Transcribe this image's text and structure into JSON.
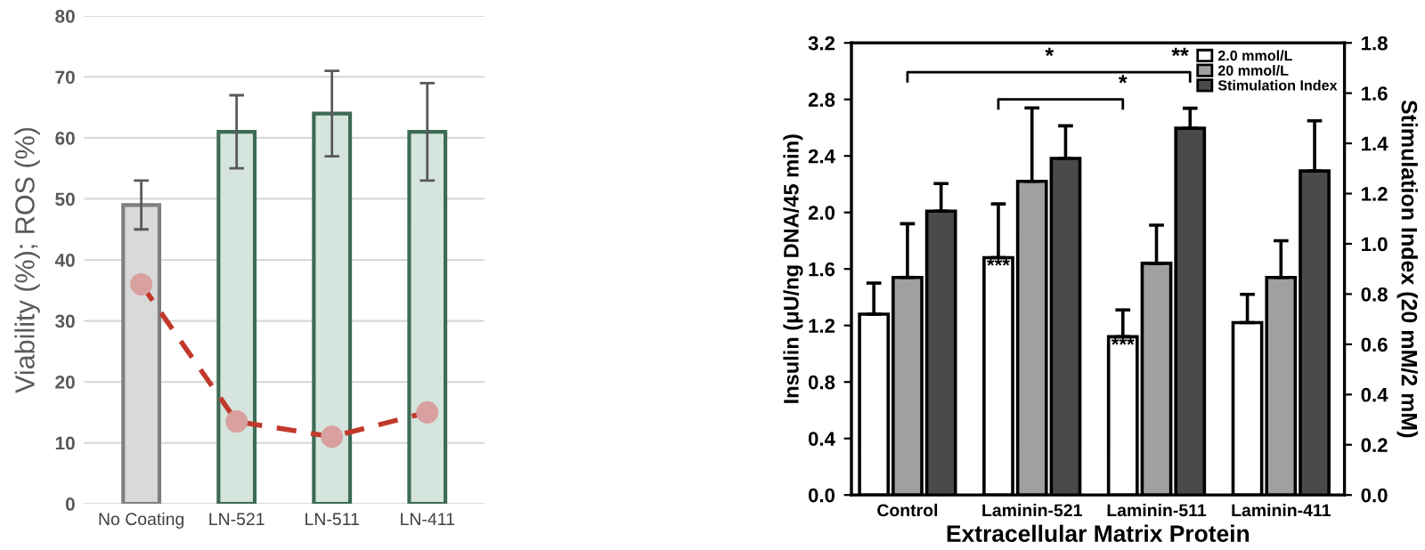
{
  "chart_data": [
    {
      "type": "bar",
      "ylabel": "Viability (%); ROS (%)",
      "categories": [
        "No Coating",
        "LN-521",
        "LN-511",
        "LN-411"
      ],
      "series": [
        {
          "type": "bar",
          "values": [
            49,
            61,
            64,
            61
          ],
          "colors": [
            "#d9d9d9",
            "#d5e5dd",
            "#d5e5dd",
            "#d5e5dd"
          ],
          "errors": [
            [
              45,
              53
            ],
            [
              55,
              67
            ],
            [
              57,
              71
            ],
            [
              53,
              69
            ]
          ]
        },
        {
          "type": "line",
          "color": "#c0392b",
          "values": [
            36,
            13.5,
            11,
            15
          ],
          "marker": "circle",
          "line_style": "dashed"
        }
      ],
      "ylim": [
        0,
        80
      ],
      "yticks": [
        0,
        10,
        20,
        30,
        40,
        50,
        60,
        70,
        80
      ],
      "grid": "y",
      "legend": false
    },
    {
      "type": "bar",
      "xlabel": "Extracellular Matrix Protein",
      "ylabel": "Insulin (μU/ng DNA/45 min)",
      "y2label": "Stimulation Index (20 mM/2 mM)",
      "categories": [
        "Control",
        "Laminin-521",
        "Laminin-511",
        "Laminin-411"
      ],
      "series": [
        {
          "name": "2.0 mmol/L",
          "color": "#ffffff",
          "values": [
            1.28,
            1.68,
            1.12,
            1.22
          ],
          "errors": [
            [
              1.28,
              1.5
            ],
            [
              1.68,
              2.06
            ],
            [
              1.12,
              1.31
            ],
            [
              1.22,
              1.42
            ]
          ]
        },
        {
          "name": "20 mmol/L",
          "color": "#a0a0a0",
          "values": [
            1.54,
            2.22,
            1.64,
            1.54
          ],
          "errors": [
            [
              1.54,
              1.92
            ],
            [
              2.22,
              2.74
            ],
            [
              1.64,
              1.91
            ],
            [
              1.54,
              1.8
            ]
          ]
        },
        {
          "name": "Stimulation Index",
          "color": "#4a4a4a",
          "axis": "y2",
          "values": [
            1.13,
            1.34,
            1.46,
            1.29
          ],
          "errors": [
            [
              1.13,
              1.24
            ],
            [
              1.34,
              1.47
            ],
            [
              1.46,
              1.54
            ],
            [
              1.29,
              1.49
            ]
          ]
        }
      ],
      "ylim": [
        0,
        3.2
      ],
      "yticks": [
        {
          "value": 0,
          "label": "0.0"
        },
        0.4,
        0.8,
        1.2,
        1.6,
        {
          "value": 2.0,
          "label": "2.0"
        },
        2.4,
        2.8,
        3.2
      ],
      "y2lim": [
        0,
        1.8
      ],
      "y2ticks": [
        {
          "value": 0,
          "label": "0.0"
        },
        0.2,
        0.4,
        0.6,
        0.8,
        {
          "value": 1.0,
          "label": "1.0"
        },
        1.2,
        1.4,
        1.6,
        1.8
      ],
      "annotations": [
        "*",
        "**",
        "*",
        "***",
        "***"
      ],
      "grid": false,
      "legend": "top right"
    }
  ]
}
